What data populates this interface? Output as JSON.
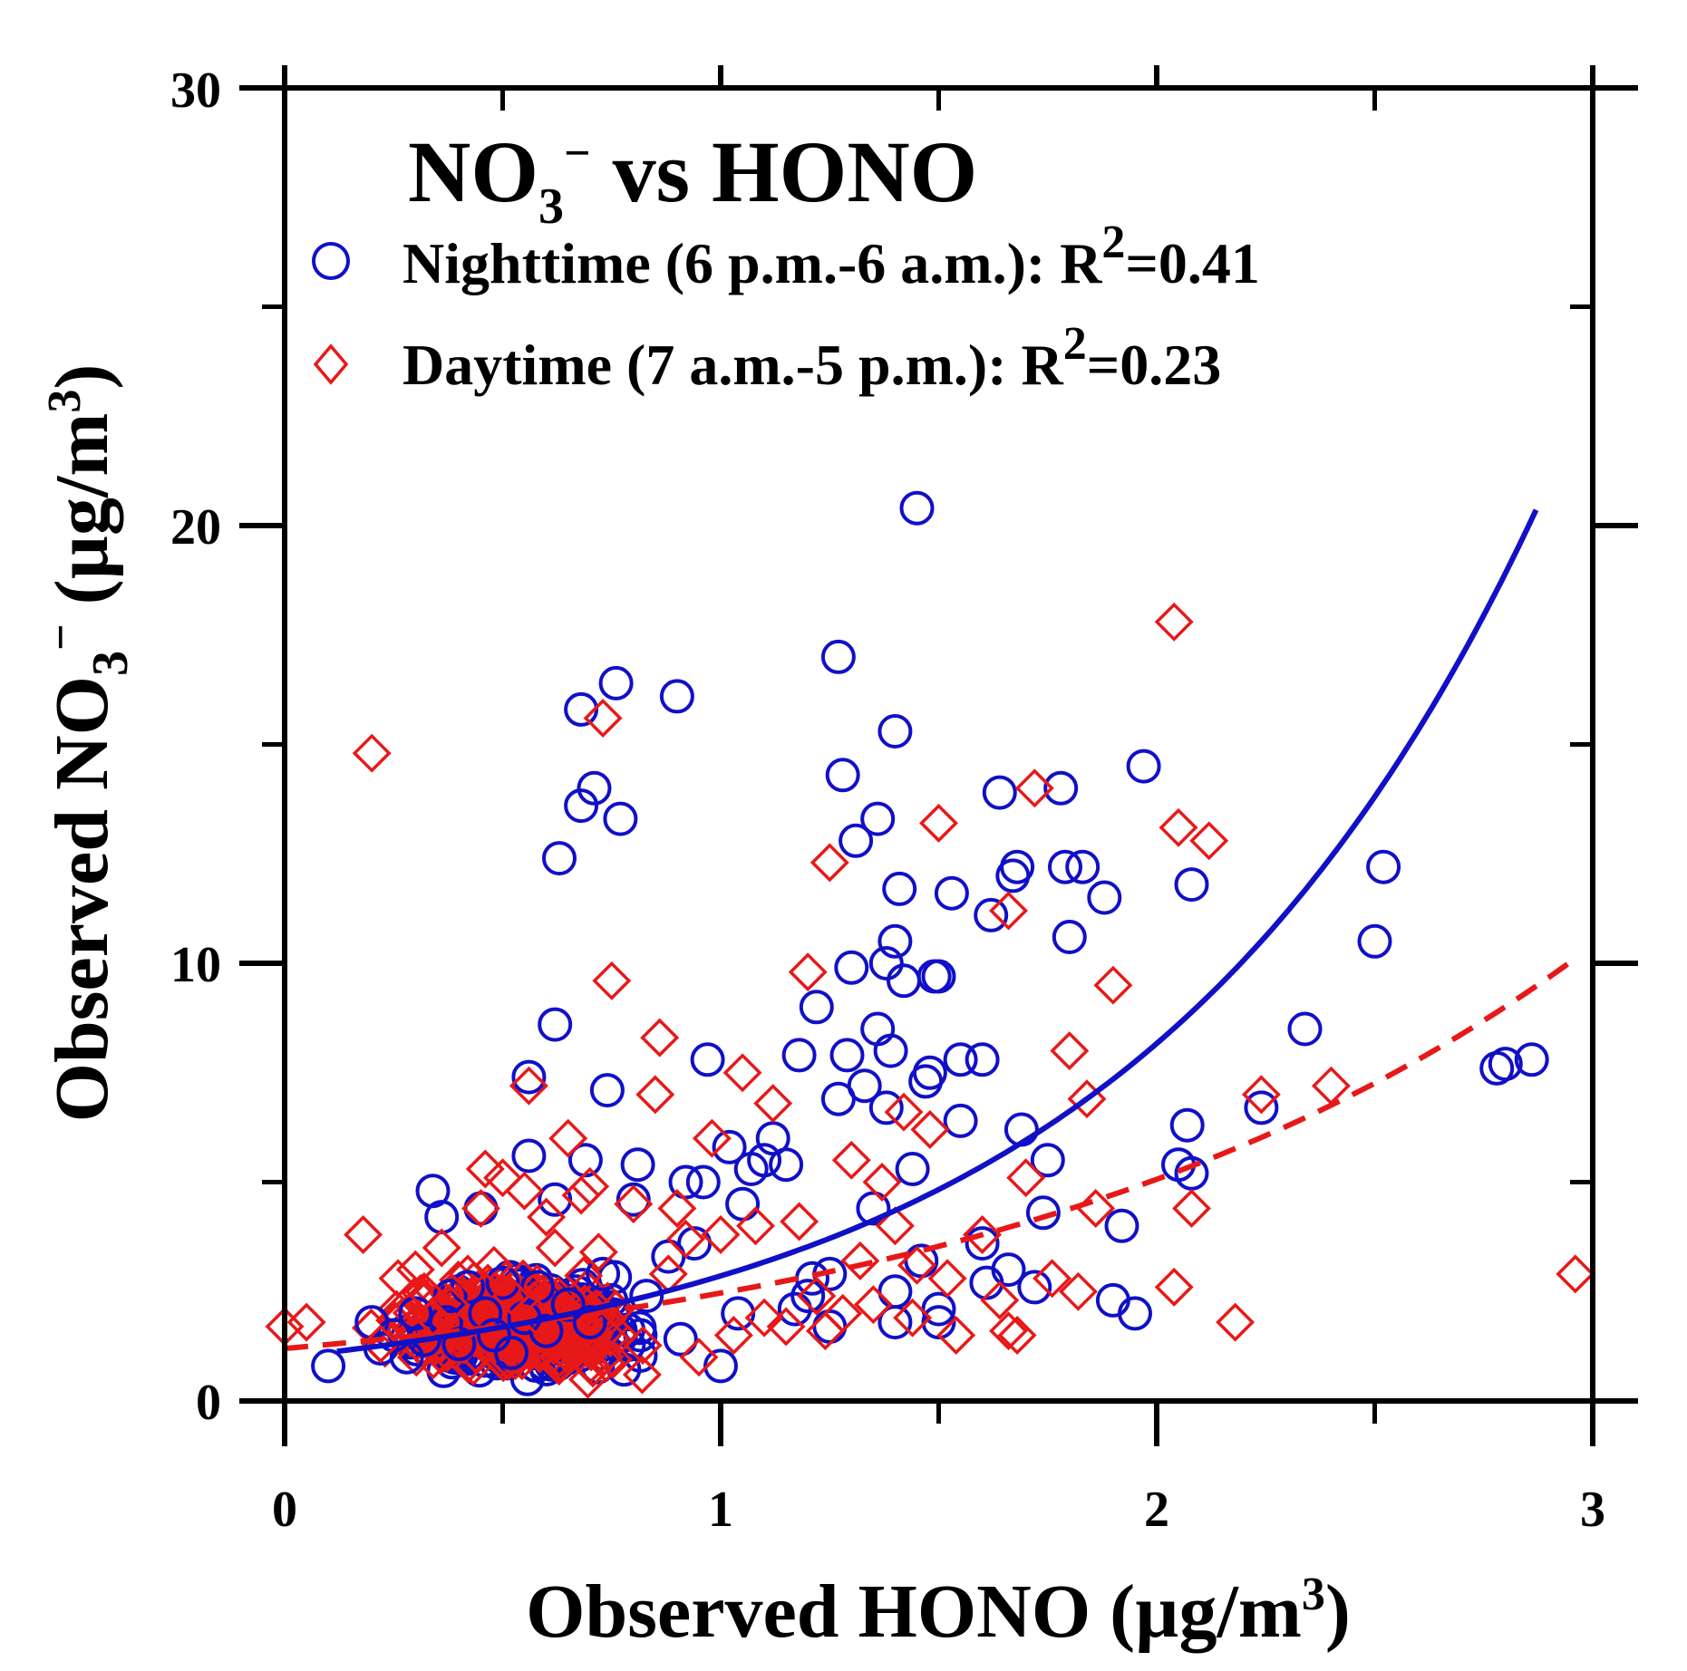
{
  "chart_data": {
    "type": "scatter",
    "title": {
      "base": "NO",
      "sub": "3",
      "sup": "−",
      "rest": " vs HONO"
    },
    "xlabel": {
      "main": "Observed HONO (µg/m",
      "sup": "3",
      "close": ")"
    },
    "ylabel": {
      "main": "Observed NO",
      "sub": "3",
      "sup": "−",
      "mid": " (µg/m",
      "sup2": "3",
      "close": ")"
    },
    "xlim": [
      0,
      3
    ],
    "ylim": [
      0,
      30
    ],
    "xticks": [
      0,
      1,
      2,
      3
    ],
    "yticks": [
      0,
      10,
      20,
      30
    ],
    "x_tick_labels": [
      "0",
      "1",
      "2",
      "3"
    ],
    "y_tick_labels": [
      "0",
      "10",
      "20",
      "30"
    ],
    "legend_position": "top-left",
    "series": [
      {
        "name": "Nighttime",
        "label": {
          "text": "Nighttime (6 p.m.-6 a.m.): R",
          "sup": "2",
          "rest": "=0.41"
        },
        "marker": "circle",
        "color": "#1010c8",
        "fit": {
          "style": "solid",
          "type": "exponential",
          "a": 1.0,
          "b": 1.05
        },
        "points": [
          [
            0.1,
            0.8
          ],
          [
            0.2,
            1.8
          ],
          [
            0.22,
            1.2
          ],
          [
            0.25,
            1.5
          ],
          [
            0.28,
            1.0
          ],
          [
            0.3,
            2.0
          ],
          [
            0.32,
            1.4
          ],
          [
            0.34,
            4.8
          ],
          [
            0.36,
            4.2
          ],
          [
            0.37,
            1.8
          ],
          [
            0.38,
            2.4
          ],
          [
            0.4,
            1.3
          ],
          [
            0.42,
            2.6
          ],
          [
            0.45,
            4.4
          ],
          [
            0.46,
            2.0
          ],
          [
            0.48,
            1.5
          ],
          [
            0.5,
            2.7
          ],
          [
            0.52,
            1.1
          ],
          [
            0.55,
            1.9
          ],
          [
            0.56,
            7.4
          ],
          [
            0.56,
            5.6
          ],
          [
            0.58,
            2.6
          ],
          [
            0.6,
            1.6
          ],
          [
            0.62,
            8.6
          ],
          [
            0.62,
            4.6
          ],
          [
            0.63,
            12.4
          ],
          [
            0.65,
            2.2
          ],
          [
            0.68,
            13.6
          ],
          [
            0.68,
            15.8
          ],
          [
            0.69,
            5.5
          ],
          [
            0.7,
            1.8
          ],
          [
            0.71,
            14.0
          ],
          [
            0.73,
            2.9
          ],
          [
            0.74,
            7.1
          ],
          [
            0.76,
            16.4
          ],
          [
            0.77,
            13.3
          ],
          [
            0.8,
            4.6
          ],
          [
            0.81,
            5.4
          ],
          [
            0.83,
            2.4
          ],
          [
            0.88,
            3.3
          ],
          [
            0.9,
            16.1
          ],
          [
            0.92,
            5.0
          ],
          [
            0.94,
            3.6
          ],
          [
            0.96,
            5.0
          ],
          [
            0.97,
            7.8
          ],
          [
            1.0,
            0.8
          ],
          [
            1.02,
            5.8
          ],
          [
            1.04,
            2.0
          ],
          [
            1.05,
            4.5
          ],
          [
            1.07,
            5.3
          ],
          [
            1.1,
            5.5
          ],
          [
            1.12,
            6.0
          ],
          [
            1.15,
            5.4
          ],
          [
            1.17,
            2.1
          ],
          [
            1.18,
            7.9
          ],
          [
            1.2,
            2.4
          ],
          [
            1.21,
            2.8
          ],
          [
            1.22,
            9.0
          ],
          [
            1.25,
            2.9
          ],
          [
            1.25,
            1.7
          ],
          [
            1.27,
            6.9
          ],
          [
            1.27,
            17.0
          ],
          [
            1.28,
            14.3
          ],
          [
            1.29,
            7.9
          ],
          [
            1.3,
            9.9
          ],
          [
            1.31,
            12.8
          ],
          [
            1.33,
            7.2
          ],
          [
            1.35,
            4.4
          ],
          [
            1.36,
            8.5
          ],
          [
            1.36,
            13.3
          ],
          [
            1.38,
            10.0
          ],
          [
            1.38,
            6.7
          ],
          [
            1.39,
            8.0
          ],
          [
            1.4,
            10.5
          ],
          [
            1.4,
            2.5
          ],
          [
            1.4,
            1.8
          ],
          [
            1.41,
            11.7
          ],
          [
            1.4,
            15.3
          ],
          [
            1.42,
            9.6
          ],
          [
            1.44,
            5.3
          ],
          [
            1.45,
            20.4
          ],
          [
            1.46,
            3.2
          ],
          [
            1.47,
            7.3
          ],
          [
            1.48,
            7.5
          ],
          [
            1.49,
            9.7
          ],
          [
            1.5,
            9.7
          ],
          [
            1.5,
            2.1
          ],
          [
            1.5,
            1.8
          ],
          [
            1.53,
            11.6
          ],
          [
            1.55,
            7.8
          ],
          [
            1.55,
            6.4
          ],
          [
            1.6,
            7.8
          ],
          [
            1.6,
            3.6
          ],
          [
            1.61,
            2.7
          ],
          [
            1.62,
            11.1
          ],
          [
            1.64,
            13.9
          ],
          [
            1.66,
            3.0
          ],
          [
            1.67,
            12.0
          ],
          [
            1.68,
            12.2
          ],
          [
            1.69,
            6.2
          ],
          [
            1.72,
            2.6
          ],
          [
            1.74,
            4.3
          ],
          [
            1.75,
            5.5
          ],
          [
            1.78,
            14.0
          ],
          [
            1.79,
            12.2
          ],
          [
            1.8,
            10.6
          ],
          [
            1.83,
            12.2
          ],
          [
            1.88,
            11.5
          ],
          [
            1.9,
            2.3
          ],
          [
            1.92,
            4.0
          ],
          [
            1.95,
            2.0
          ],
          [
            1.97,
            14.5
          ],
          [
            2.05,
            5.4
          ],
          [
            2.07,
            6.3
          ],
          [
            2.08,
            5.2
          ],
          [
            2.08,
            11.8
          ],
          [
            2.24,
            6.7
          ],
          [
            2.34,
            8.5
          ],
          [
            2.5,
            10.5
          ],
          [
            2.52,
            12.2
          ],
          [
            2.78,
            7.6
          ],
          [
            2.8,
            7.7
          ],
          [
            2.86,
            7.8
          ]
        ]
      },
      {
        "name": "Daytime",
        "label": {
          "text": "Daytime (7 a.m.-5 p.m.): R",
          "sup": "2",
          "rest": "=0.23"
        },
        "marker": "diamond",
        "color": "#e81818",
        "fit": {
          "style": "dashed",
          "type": "exponential",
          "a": 1.2,
          "b": 0.72
        },
        "points": [
          [
            0.0,
            1.7
          ],
          [
            0.05,
            1.8
          ],
          [
            0.18,
            3.8
          ],
          [
            0.2,
            14.8
          ],
          [
            0.22,
            1.3
          ],
          [
            0.26,
            2.8
          ],
          [
            0.3,
            3.0
          ],
          [
            0.32,
            2.5
          ],
          [
            0.34,
            1.9
          ],
          [
            0.36,
            3.5
          ],
          [
            0.38,
            2.2
          ],
          [
            0.4,
            1.6
          ],
          [
            0.42,
            2.9
          ],
          [
            0.45,
            4.4
          ],
          [
            0.46,
            5.3
          ],
          [
            0.48,
            3.1
          ],
          [
            0.5,
            5.1
          ],
          [
            0.52,
            2.4
          ],
          [
            0.55,
            4.8
          ],
          [
            0.56,
            7.2
          ],
          [
            0.58,
            1.9
          ],
          [
            0.6,
            4.2
          ],
          [
            0.62,
            3.5
          ],
          [
            0.65,
            6.0
          ],
          [
            0.68,
            4.7
          ],
          [
            0.7,
            4.9
          ],
          [
            0.72,
            3.4
          ],
          [
            0.73,
            15.6
          ],
          [
            0.75,
            9.6
          ],
          [
            0.76,
            2.1
          ],
          [
            0.8,
            4.5
          ],
          [
            0.82,
            0.6
          ],
          [
            0.85,
            7.0
          ],
          [
            0.86,
            8.3
          ],
          [
            0.88,
            2.9
          ],
          [
            0.9,
            4.4
          ],
          [
            0.92,
            3.7
          ],
          [
            0.95,
            1.0
          ],
          [
            0.98,
            6.0
          ],
          [
            1.0,
            3.8
          ],
          [
            1.03,
            1.5
          ],
          [
            1.05,
            7.5
          ],
          [
            1.08,
            4.0
          ],
          [
            1.1,
            1.9
          ],
          [
            1.12,
            6.8
          ],
          [
            1.15,
            1.7
          ],
          [
            1.18,
            4.1
          ],
          [
            1.2,
            9.8
          ],
          [
            1.22,
            2.4
          ],
          [
            1.24,
            1.6
          ],
          [
            1.25,
            12.3
          ],
          [
            1.28,
            2.0
          ],
          [
            1.3,
            5.5
          ],
          [
            1.32,
            3.2
          ],
          [
            1.35,
            2.2
          ],
          [
            1.37,
            5.0
          ],
          [
            1.4,
            4.0
          ],
          [
            1.42,
            6.6
          ],
          [
            1.44,
            1.9
          ],
          [
            1.45,
            3.1
          ],
          [
            1.48,
            6.2
          ],
          [
            1.5,
            13.2
          ],
          [
            1.52,
            2.8
          ],
          [
            1.54,
            1.5
          ],
          [
            1.6,
            3.8
          ],
          [
            1.64,
            2.3
          ],
          [
            1.66,
            11.2
          ],
          [
            1.66,
            1.6
          ],
          [
            1.68,
            1.5
          ],
          [
            1.7,
            5.1
          ],
          [
            1.72,
            14.0
          ],
          [
            1.76,
            2.8
          ],
          [
            1.8,
            8.0
          ],
          [
            1.82,
            2.5
          ],
          [
            1.84,
            6.9
          ],
          [
            1.86,
            4.4
          ],
          [
            1.9,
            9.5
          ],
          [
            2.04,
            17.8
          ],
          [
            2.04,
            2.6
          ],
          [
            2.05,
            13.1
          ],
          [
            2.08,
            4.4
          ],
          [
            2.12,
            12.8
          ],
          [
            2.18,
            1.8
          ],
          [
            2.24,
            7.0
          ],
          [
            2.4,
            7.2
          ],
          [
            2.96,
            2.9
          ]
        ]
      }
    ]
  }
}
